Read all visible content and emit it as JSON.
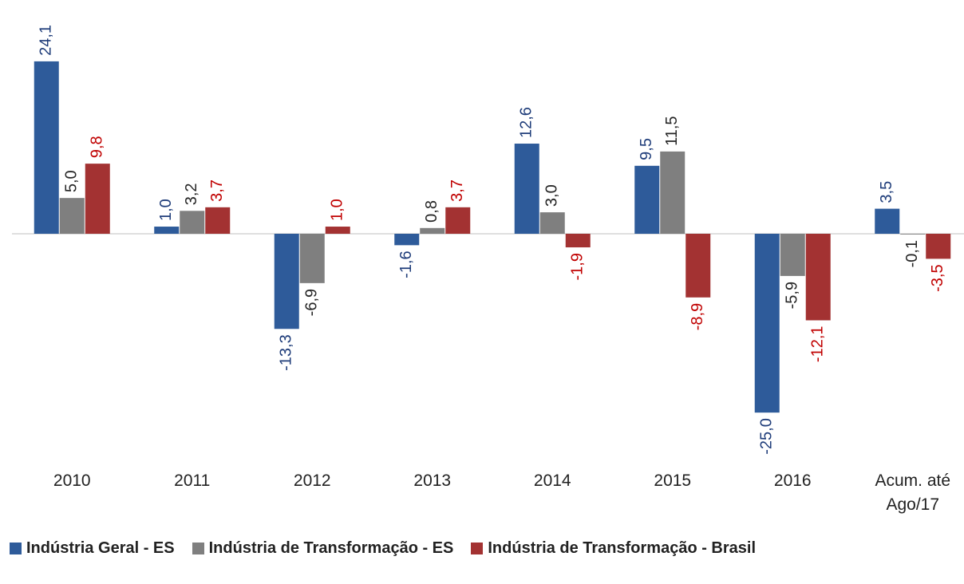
{
  "chart_data": {
    "type": "bar",
    "categories": [
      "2010",
      "2011",
      "2012",
      "2013",
      "2014",
      "2015",
      "2016",
      "Acum. até Ago/17"
    ],
    "series": [
      {
        "name": "Indústria Geral - ES",
        "color": "#2e5b9a",
        "label_color": "#1f3d7a",
        "values": [
          24.1,
          1.0,
          -13.3,
          -1.6,
          12.6,
          9.5,
          -25.0,
          3.5
        ],
        "value_labels": [
          "24,1",
          "1,0",
          "-13,3",
          "-1,6",
          "12,6",
          "9,5",
          "-25,0",
          "3,5"
        ]
      },
      {
        "name": "Indústria de Transformação - ES",
        "color": "#7f7f7f",
        "label_color": "#262626",
        "values": [
          5.0,
          3.2,
          -6.9,
          0.8,
          3.0,
          11.5,
          -5.9,
          -0.1
        ],
        "value_labels": [
          "5,0",
          "3,2",
          "-6,9",
          "0,8",
          "3,0",
          "11,5",
          "-5,9",
          "-0,1"
        ]
      },
      {
        "name": "Indústria de Transformação - Brasil",
        "color": "#a33232",
        "label_color": "#c00000",
        "values": [
          9.8,
          3.7,
          1.0,
          3.7,
          -1.9,
          -8.9,
          -12.1,
          -3.5
        ],
        "value_labels": [
          "9,8",
          "3,7",
          "1,0",
          "3,7",
          "-1,9",
          "-8,9",
          "-12,1",
          "-3,5"
        ]
      }
    ],
    "ylim": [
      -30,
      30
    ],
    "legend": "bottom"
  }
}
